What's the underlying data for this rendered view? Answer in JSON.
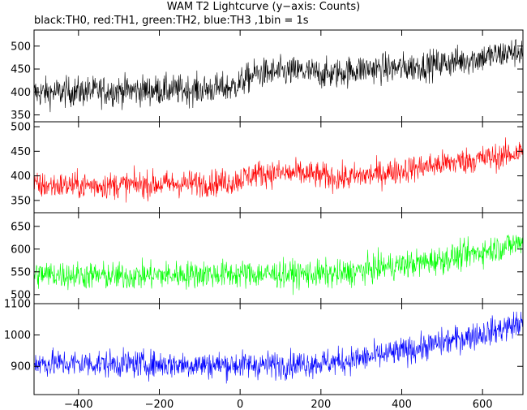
{
  "title": "WAM T2 Lightcurve (y−axis: Counts)",
  "subtitle": "black:TH0, red:TH1, green:TH2, blue:TH3 ,1bin = 1s",
  "chart_data": {
    "type": "line",
    "xlim": [
      -510,
      700
    ],
    "x_ticks": [
      -400,
      -200,
      0,
      200,
      400,
      600
    ],
    "grid": false,
    "x_bin_seconds": 1,
    "panels": [
      {
        "series": "TH0",
        "color": "#000000",
        "ylim": [
          335,
          535
        ],
        "y_ticks": [
          350,
          400,
          450,
          500
        ],
        "trend": [
          [
            -510,
            398
          ],
          [
            -300,
            403
          ],
          [
            -100,
            405
          ],
          [
            -20,
            410
          ],
          [
            40,
            440
          ],
          [
            150,
            445
          ],
          [
            220,
            438
          ],
          [
            300,
            450
          ],
          [
            400,
            452
          ],
          [
            500,
            462
          ],
          [
            600,
            475
          ],
          [
            700,
            490
          ]
        ],
        "noise": 30
      },
      {
        "series": "TH1",
        "color": "#ff0000",
        "ylim": [
          325,
          510
        ],
        "y_ticks": [
          350,
          400,
          450,
          500
        ],
        "trend": [
          [
            -510,
            380
          ],
          [
            -300,
            381
          ],
          [
            -100,
            385
          ],
          [
            -20,
            388
          ],
          [
            40,
            405
          ],
          [
            150,
            405
          ],
          [
            250,
            395
          ],
          [
            350,
            405
          ],
          [
            450,
            418
          ],
          [
            550,
            430
          ],
          [
            650,
            440
          ],
          [
            700,
            450
          ]
        ],
        "noise": 25
      },
      {
        "series": "TH2",
        "color": "#00ff00",
        "ylim": [
          480,
          680
        ],
        "y_ticks": [
          500,
          550,
          600,
          650
        ],
        "trend": [
          [
            -510,
            545
          ],
          [
            -300,
            540
          ],
          [
            -100,
            545
          ],
          [
            100,
            545
          ],
          [
            250,
            545
          ],
          [
            350,
            560
          ],
          [
            450,
            570
          ],
          [
            550,
            585
          ],
          [
            650,
            605
          ],
          [
            700,
            615
          ]
        ],
        "noise": 28
      },
      {
        "series": "TH3",
        "color": "#0000ff",
        "ylim": [
          810,
          1100
        ],
        "y_ticks": [
          900,
          1000,
          1100
        ],
        "trend": [
          [
            -510,
            910
          ],
          [
            -300,
            908
          ],
          [
            -100,
            905
          ],
          [
            100,
            905
          ],
          [
            250,
            915
          ],
          [
            350,
            935
          ],
          [
            450,
            960
          ],
          [
            550,
            990
          ],
          [
            650,
            1020
          ],
          [
            700,
            1040
          ]
        ],
        "noise": 40
      }
    ]
  }
}
